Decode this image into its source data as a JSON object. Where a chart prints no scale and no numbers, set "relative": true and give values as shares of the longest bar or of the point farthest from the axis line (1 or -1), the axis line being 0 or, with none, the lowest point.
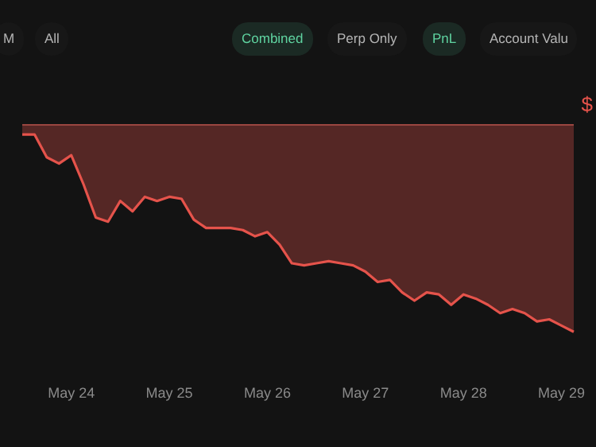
{
  "chart_data": {
    "type": "area",
    "relative": true,
    "categories": [
      null,
      null,
      null,
      null,
      "May 24",
      null,
      null,
      null,
      null,
      null,
      null,
      null,
      "May 25",
      null,
      null,
      null,
      null,
      null,
      null,
      null,
      "May 26",
      null,
      null,
      null,
      null,
      null,
      null,
      null,
      "May 27",
      null,
      null,
      null,
      null,
      null,
      null,
      null,
      "May 28",
      null,
      null,
      null,
      null,
      null,
      null,
      null,
      "May 29",
      null
    ],
    "series": [
      {
        "color": "#e5534b",
        "values": [
          -0.05,
          -0.05,
          -0.16,
          -0.19,
          -0.15,
          -0.29,
          -0.45,
          -0.47,
          -0.37,
          -0.42,
          -0.35,
          -0.37,
          -0.35,
          -0.36,
          -0.46,
          -0.5,
          -0.5,
          -0.5,
          -0.51,
          -0.54,
          -0.52,
          -0.58,
          -0.67,
          -0.68,
          -0.67,
          -0.66,
          -0.67,
          -0.68,
          -0.71,
          -0.76,
          -0.75,
          -0.81,
          -0.85,
          -0.81,
          -0.82,
          -0.87,
          -0.82,
          -0.84,
          -0.87,
          -0.91,
          -0.89,
          -0.91,
          -0.95,
          -0.94,
          -0.97,
          -1.0
        ]
      }
    ],
    "grid": false,
    "legend": false,
    "marker": "none",
    "line_style": "solid",
    "annotations": [
      "M",
      "All",
      "Combined",
      "Perp Only",
      "PnL",
      "Account Valu",
      "$"
    ]
  }
}
